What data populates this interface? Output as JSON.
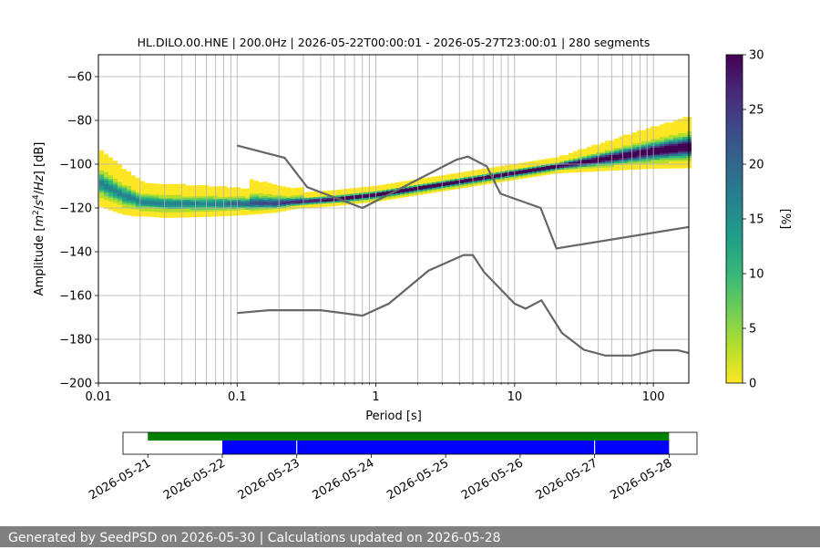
{
  "chart_data": [
    {
      "type": "heatmap",
      "title": "HL.DILO.00.HNE | 200.0Hz | 2026-05-22T00:00:01 - 2026-05-27T23:00:01 | 280 segments",
      "xlabel": "Period [s]",
      "ylabel_parts": [
        "Amplitude [",
        "m",
        "2",
        "/",
        "s",
        "4",
        "/",
        "Hz",
        "] [dB]"
      ],
      "x_scale": "log",
      "xlim": [
        0.01,
        180
      ],
      "ylim": [
        -200,
        -50
      ],
      "x_ticks": [
        {
          "v": 0.01,
          "label": "0.01"
        },
        {
          "v": 0.1,
          "label": "0.1"
        },
        {
          "v": 1,
          "label": "1"
        },
        {
          "v": 10,
          "label": "10"
        },
        {
          "v": 100,
          "label": "100"
        }
      ],
      "y_ticks": [
        -60,
        -80,
        -100,
        -120,
        -140,
        -160,
        -180,
        -200
      ],
      "y_tick_labels": [
        "−60",
        "−80",
        "−100",
        "−120",
        "−140",
        "−160",
        "−180",
        "−200"
      ],
      "grid": true,
      "colorbar": {
        "label": "[%]",
        "range": [
          0,
          30
        ],
        "ticks": [
          0,
          5,
          10,
          15,
          20,
          25,
          30
        ],
        "colors": [
          "#fde725",
          "#b5de2b",
          "#6ece58",
          "#35b779",
          "#1f9e89",
          "#26828e",
          "#31688e",
          "#3e4989",
          "#482878",
          "#440154"
        ]
      },
      "density_mode": [
        {
          "x": 0.01,
          "y": -108
        },
        {
          "x": 0.015,
          "y": -114
        },
        {
          "x": 0.02,
          "y": -117
        },
        {
          "x": 0.03,
          "y": -118
        },
        {
          "x": 0.05,
          "y": -118
        },
        {
          "x": 0.1,
          "y": -118
        },
        {
          "x": 0.2,
          "y": -118
        },
        {
          "x": 0.3,
          "y": -117
        },
        {
          "x": 0.5,
          "y": -116
        },
        {
          "x": 1,
          "y": -114
        },
        {
          "x": 2,
          "y": -111
        },
        {
          "x": 5,
          "y": -107
        },
        {
          "x": 10,
          "y": -104
        },
        {
          "x": 20,
          "y": -101
        },
        {
          "x": 50,
          "y": -97
        },
        {
          "x": 100,
          "y": -94
        },
        {
          "x": 180,
          "y": -92
        }
      ],
      "series": [
        {
          "color": "#666666",
          "points": [
            {
              "x": 0.1,
              "y": -91.5
            },
            {
              "x": 0.22,
              "y": -97.1
            },
            {
              "x": 0.32,
              "y": -110.5
            },
            {
              "x": 0.8,
              "y": -120
            },
            {
              "x": 3.8,
              "y": -98
            },
            {
              "x": 4.6,
              "y": -96.5
            },
            {
              "x": 6.3,
              "y": -101
            },
            {
              "x": 7.9,
              "y": -113.5
            },
            {
              "x": 15.4,
              "y": -120
            },
            {
              "x": 20,
              "y": -138.5
            },
            {
              "x": 179,
              "y": -128.7
            }
          ]
        },
        {
          "color": "#666666",
          "points": [
            {
              "x": 0.1,
              "y": -168
            },
            {
              "x": 0.17,
              "y": -166.7
            },
            {
              "x": 0.4,
              "y": -166.7
            },
            {
              "x": 0.8,
              "y": -169.2
            },
            {
              "x": 1.24,
              "y": -163.7
            },
            {
              "x": 2.4,
              "y": -148.6
            },
            {
              "x": 4.3,
              "y": -141.5
            },
            {
              "x": 5.0,
              "y": -141.5
            },
            {
              "x": 6.0,
              "y": -149.2
            },
            {
              "x": 10,
              "y": -163.7
            },
            {
              "x": 12,
              "y": -166
            },
            {
              "x": 15.6,
              "y": -162.2
            },
            {
              "x": 21.9,
              "y": -177.1
            },
            {
              "x": 31.6,
              "y": -184.8
            },
            {
              "x": 45,
              "y": -187.4
            },
            {
              "x": 70,
              "y": -187.4
            },
            {
              "x": 100,
              "y": -185
            },
            {
              "x": 150,
              "y": -185
            },
            {
              "x": 179,
              "y": -186.2
            }
          ]
        }
      ]
    },
    {
      "type": "timeline",
      "xlim": [
        "2026-05-20T16:00",
        "2026-05-28T09:00"
      ],
      "x_ticks": [
        "2026-05-21",
        "2026-05-22",
        "2026-05-23",
        "2026-05-24",
        "2026-05-25",
        "2026-05-26",
        "2026-05-27",
        "2026-05-28"
      ],
      "rows": [
        {
          "color": "#008000",
          "spans": [
            [
              "2026-05-21T00:00",
              "2026-05-28T00:00"
            ]
          ]
        },
        {
          "color": "#0000ff",
          "spans": [
            [
              "2026-05-22T00:00",
              "2026-05-22T23:50"
            ],
            [
              "2026-05-23T00:10",
              "2026-05-26T23:50"
            ],
            [
              "2026-05-27T00:10",
              "2026-05-28T00:00"
            ]
          ]
        }
      ]
    }
  ],
  "footer": "Generated by SeedPSD on 2026-05-30 | Calculations updated on 2026-05-28"
}
